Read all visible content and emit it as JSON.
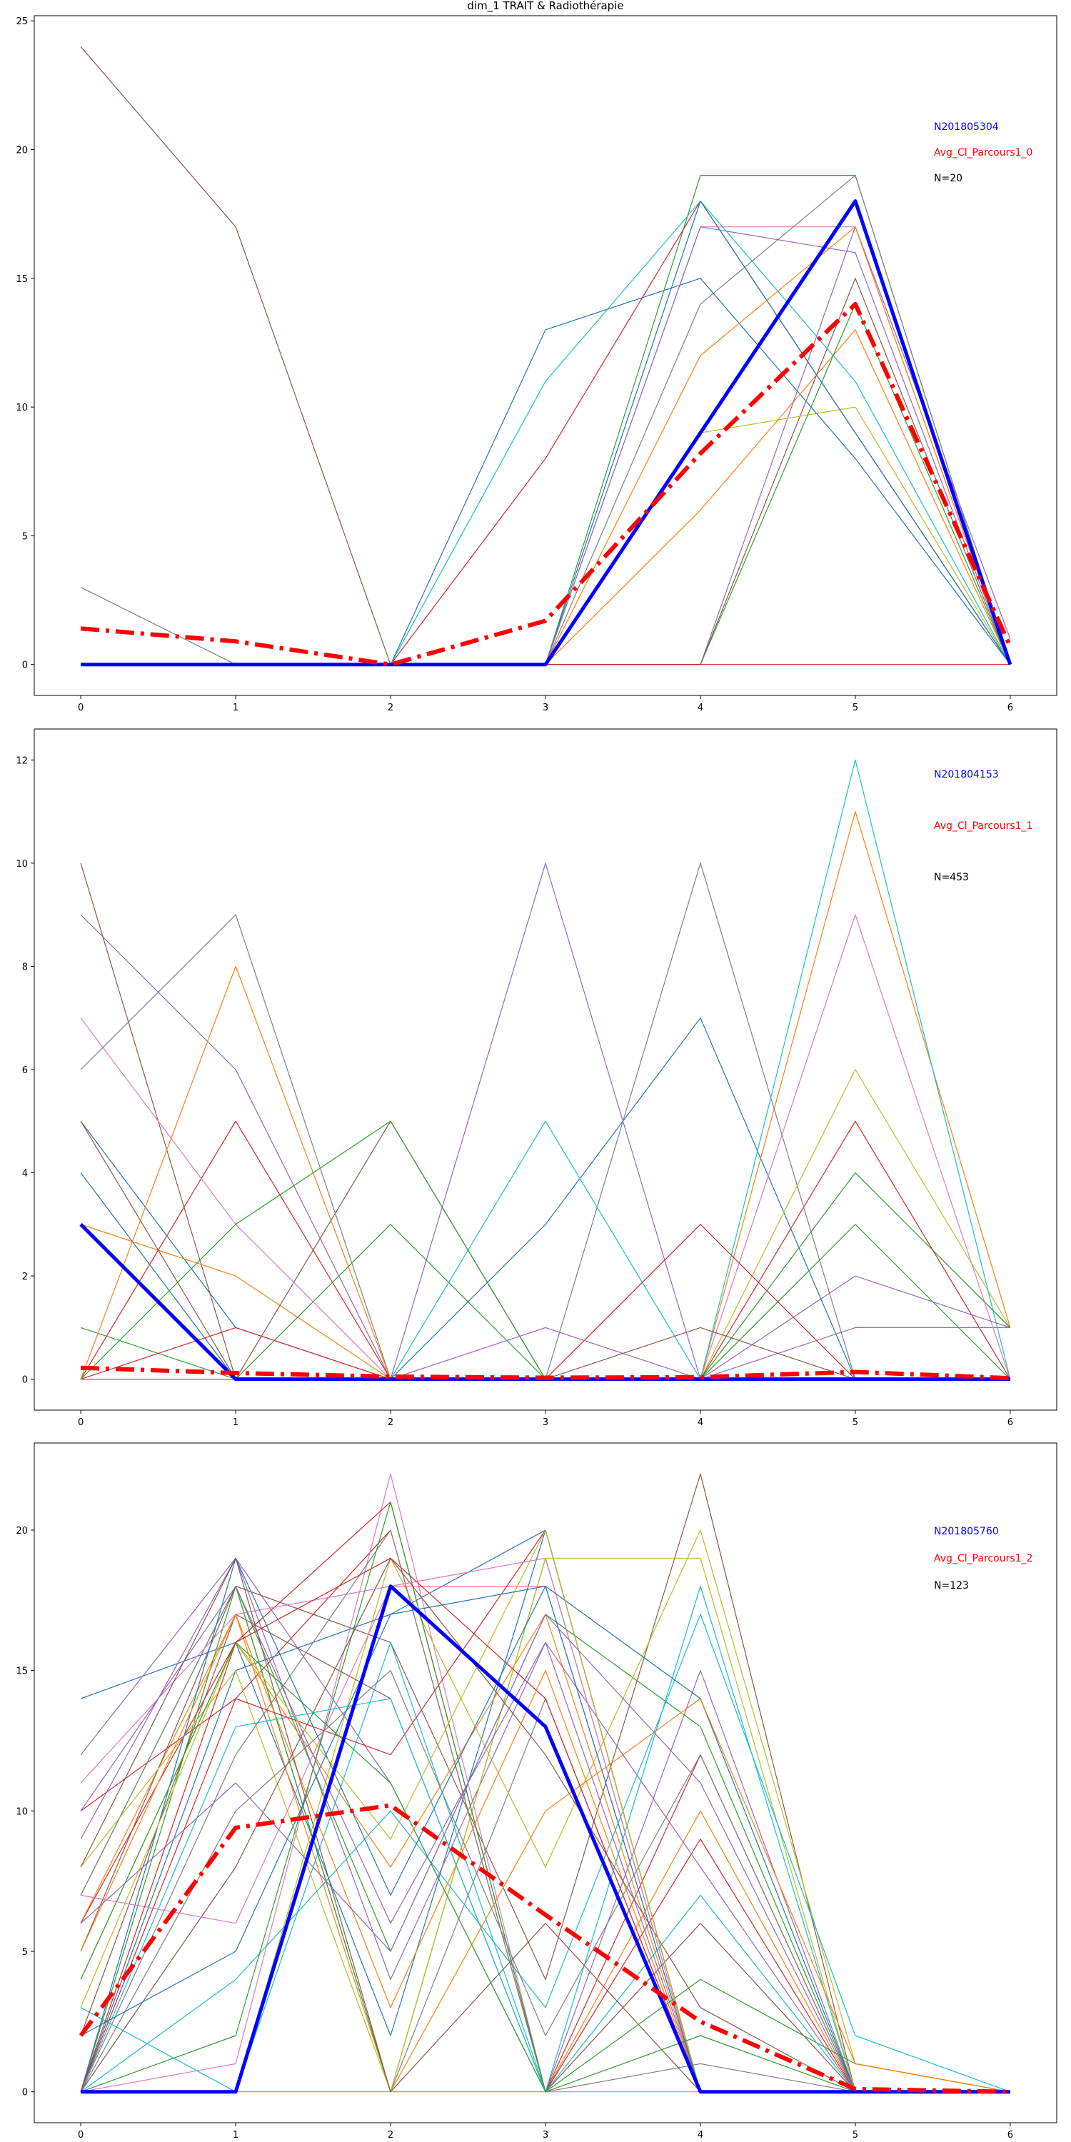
{
  "figure": {
    "title": "dim_1 TRAIT & Radiothérapie"
  },
  "colors": {
    "cycle": [
      "#1f77b4",
      "#ff7f0e",
      "#2ca02c",
      "#d62728",
      "#9467bd",
      "#8c564b",
      "#e377c2",
      "#7f7f7f",
      "#bcbd22",
      "#17becf"
    ],
    "highlight": "#0000ff",
    "average": "#ff0000",
    "count_label": "#000000"
  },
  "chart_data": [
    {
      "type": "line",
      "title": "dim_1 TRAIT & Radiothérapie",
      "xlabel": "",
      "ylabel": "",
      "x": [
        0,
        1,
        2,
        3,
        4,
        5,
        6
      ],
      "xlim": [
        -0.3,
        6.3
      ],
      "ylim": [
        -1.2,
        25.2
      ],
      "yticks": [
        0,
        5,
        10,
        15,
        20,
        25
      ],
      "xticks": [
        0,
        1,
        2,
        3,
        4,
        5,
        6
      ],
      "legend": [
        {
          "text": "N201805304",
          "color": "#0000ff"
        },
        {
          "text": "Avg_Cl_Parcours1_0",
          "color": "#ff0000"
        },
        {
          "text": "N=20",
          "color": "#000000"
        }
      ],
      "legend_position": "top-right",
      "series": [
        {
          "values": [
            0,
            0,
            0,
            13,
            15,
            8,
            0
          ]
        },
        {
          "values": [
            0,
            0,
            0,
            0,
            6,
            13,
            0
          ]
        },
        {
          "values": [
            0,
            0,
            0,
            0,
            19,
            19,
            0
          ]
        },
        {
          "values": [
            0,
            0,
            0,
            8,
            18,
            9,
            0
          ]
        },
        {
          "values": [
            0,
            0,
            0,
            0,
            0,
            17,
            1
          ]
        },
        {
          "values": [
            24,
            17,
            0,
            0,
            0,
            15,
            0
          ]
        },
        {
          "values": [
            0,
            0,
            0,
            0,
            17,
            17,
            0
          ]
        },
        {
          "values": [
            3,
            0,
            0,
            0,
            14,
            19,
            0
          ]
        },
        {
          "values": [
            0,
            0,
            0,
            0,
            9,
            10,
            0
          ]
        },
        {
          "values": [
            0,
            0,
            0,
            11,
            18,
            11,
            0
          ]
        },
        {
          "values": [
            0,
            0,
            0,
            0,
            18,
            9,
            0
          ]
        },
        {
          "values": [
            0,
            0,
            0,
            0,
            12,
            17,
            0
          ]
        },
        {
          "values": [
            0,
            0,
            0,
            0,
            0,
            14,
            0
          ]
        },
        {
          "values": [
            0,
            0,
            0,
            0,
            0,
            0,
            0
          ]
        },
        {
          "values": [
            0,
            0,
            0,
            0,
            17,
            16,
            0
          ]
        }
      ],
      "highlight": {
        "values": [
          0,
          0,
          0,
          0,
          9,
          18,
          0
        ]
      },
      "average": {
        "values": [
          1.4,
          0.9,
          0,
          1.7,
          8.2,
          14,
          0.7
        ]
      }
    },
    {
      "type": "line",
      "title": "",
      "xlabel": "",
      "ylabel": "",
      "x": [
        0,
        1,
        2,
        3,
        4,
        5,
        6
      ],
      "xlim": [
        -0.3,
        6.3
      ],
      "ylim": [
        -0.6,
        12.6
      ],
      "yticks": [
        0,
        2,
        4,
        6,
        8,
        10,
        12
      ],
      "xticks": [
        0,
        1,
        2,
        3,
        4,
        5,
        6
      ],
      "legend": [
        {
          "text": "N201804153",
          "color": "#0000ff"
        },
        {
          "text": "Avg_Cl_Parcours1_1",
          "color": "#ff0000"
        },
        {
          "text": "N=453",
          "color": "#000000"
        }
      ],
      "legend_position": "top-right",
      "series": [
        {
          "values": [
            5,
            1,
            0,
            3,
            7,
            0,
            0
          ]
        },
        {
          "values": [
            3,
            2,
            0,
            0,
            0,
            11,
            1
          ]
        },
        {
          "values": [
            1,
            0,
            3,
            0,
            0,
            3,
            0
          ]
        },
        {
          "values": [
            0,
            5,
            0,
            0,
            0,
            5,
            0
          ]
        },
        {
          "values": [
            9,
            6,
            0,
            10,
            0,
            1,
            1
          ]
        },
        {
          "values": [
            10,
            0,
            5,
            0,
            0,
            0,
            0
          ]
        },
        {
          "values": [
            7,
            3,
            0,
            0,
            0,
            9,
            0
          ]
        },
        {
          "values": [
            6,
            9,
            0,
            0,
            10,
            0,
            0
          ]
        },
        {
          "values": [
            0,
            0,
            0,
            0,
            0,
            6,
            1
          ]
        },
        {
          "values": [
            0,
            0,
            0,
            5,
            0,
            12,
            0
          ]
        },
        {
          "values": [
            4,
            0,
            0,
            0,
            0,
            0,
            0
          ]
        },
        {
          "values": [
            0,
            8,
            0,
            0,
            0,
            0,
            0
          ]
        },
        {
          "values": [
            0,
            3,
            5,
            0,
            0,
            4,
            1
          ]
        },
        {
          "values": [
            0,
            1,
            0,
            0,
            3,
            0,
            0
          ]
        },
        {
          "values": [
            0,
            0,
            0,
            1,
            0,
            2,
            1
          ]
        },
        {
          "values": [
            5,
            0,
            0,
            0,
            1,
            0,
            0
          ]
        }
      ],
      "highlight": {
        "values": [
          3,
          0,
          0,
          0,
          0,
          0,
          0
        ]
      },
      "average": {
        "values": [
          0.22,
          0.12,
          0.05,
          0.03,
          0.04,
          0.14,
          0.02
        ]
      }
    },
    {
      "type": "line",
      "title": "",
      "xlabel": "",
      "ylabel": "",
      "x": [
        0,
        1,
        2,
        3,
        4,
        5,
        6
      ],
      "xlim": [
        -0.3,
        6.3
      ],
      "ylim": [
        -1.1,
        23.1
      ],
      "yticks": [
        0,
        5,
        10,
        15,
        20
      ],
      "xticks": [
        0,
        1,
        2,
        3,
        4,
        5,
        6
      ],
      "legend": [
        {
          "text": "N201805760",
          "color": "#0000ff"
        },
        {
          "text": "Avg_Cl_Parcours1_2",
          "color": "#ff0000"
        },
        {
          "text": "N=123",
          "color": "#000000"
        }
      ],
      "legend_position": "top-right",
      "series": [
        {
          "values": [
            14,
            16,
            2,
            20,
            0,
            0,
            0
          ]
        },
        {
          "values": [
            6,
            17,
            0,
            0,
            10,
            0,
            0
          ]
        },
        {
          "values": [
            7,
            18,
            5,
            17,
            13,
            0,
            0
          ]
        },
        {
          "values": [
            10,
            14,
            20,
            0,
            12,
            0,
            0
          ]
        },
        {
          "values": [
            12,
            19,
            11,
            0,
            15,
            0,
            0
          ]
        },
        {
          "values": [
            5,
            18,
            16,
            4,
            22,
            0,
            0
          ]
        },
        {
          "values": [
            0,
            1,
            22,
            0,
            0,
            0,
            0
          ]
        },
        {
          "values": [
            7,
            18,
            0,
            14,
            0,
            0,
            0
          ]
        },
        {
          "values": [
            0,
            0,
            19,
            8,
            20,
            1,
            0
          ]
        },
        {
          "values": [
            3,
            0,
            16,
            0,
            18,
            0,
            0
          ]
        },
        {
          "values": [
            0,
            15,
            17,
            20,
            0,
            0,
            0
          ]
        },
        {
          "values": [
            4,
            16,
            8,
            17,
            0,
            0,
            0
          ]
        },
        {
          "values": [
            0,
            18,
            0,
            19,
            0,
            0,
            0
          ]
        },
        {
          "values": [
            6,
            16,
            21,
            0,
            9,
            0,
            0
          ]
        },
        {
          "values": [
            9,
            19,
            4,
            16,
            0,
            0,
            0
          ]
        },
        {
          "values": [
            2,
            17,
            14,
            0,
            6,
            0,
            0
          ]
        },
        {
          "values": [
            11,
            17,
            18,
            18,
            0,
            0,
            0
          ]
        },
        {
          "values": [
            0,
            12,
            20,
            0,
            1,
            0,
            0
          ]
        },
        {
          "values": [
            8,
            15,
            0,
            19,
            19,
            0,
            0
          ]
        },
        {
          "values": [
            0,
            4,
            10,
            3,
            17,
            2,
            0
          ]
        },
        {
          "values": [
            0,
            19,
            7,
            18,
            14,
            0,
            0
          ]
        },
        {
          "values": [
            5,
            17,
            3,
            15,
            0,
            0,
            0
          ]
        },
        {
          "values": [
            0,
            2,
            21,
            0,
            4,
            1,
            0
          ]
        },
        {
          "values": [
            0,
            14,
            12,
            20,
            0,
            0,
            0
          ]
        },
        {
          "values": [
            10,
            18,
            6,
            16,
            8,
            0,
            0
          ]
        },
        {
          "values": [
            0,
            8,
            19,
            12,
            3,
            0,
            0
          ]
        },
        {
          "values": [
            7,
            6,
            18,
            19,
            0,
            0,
            0
          ]
        },
        {
          "values": [
            0,
            10,
            15,
            2,
            12,
            0,
            0
          ]
        },
        {
          "values": [
            3,
            16,
            9,
            20,
            0,
            0,
            0
          ]
        },
        {
          "values": [
            0,
            13,
            14,
            0,
            7,
            0,
            0
          ]
        },
        {
          "values": [
            2,
            5,
            17,
            18,
            0,
            0,
            0
          ]
        },
        {
          "values": [
            0,
            0,
            0,
            10,
            14,
            1,
            0
          ]
        },
        {
          "values": [
            4,
            16,
            11,
            0,
            2,
            0,
            0
          ]
        },
        {
          "values": [
            0,
            16,
            19,
            14,
            0,
            0,
            0
          ]
        },
        {
          "values": [
            6,
            11,
            5,
            17,
            11,
            0,
            0
          ]
        },
        {
          "values": [
            8,
            19,
            0,
            6,
            0,
            0,
            0
          ]
        }
      ],
      "highlight": {
        "values": [
          0,
          0,
          18,
          13,
          0,
          0,
          0
        ]
      },
      "average": {
        "values": [
          2,
          9.4,
          10.2,
          6.3,
          2.5,
          0.1,
          0
        ]
      }
    }
  ]
}
